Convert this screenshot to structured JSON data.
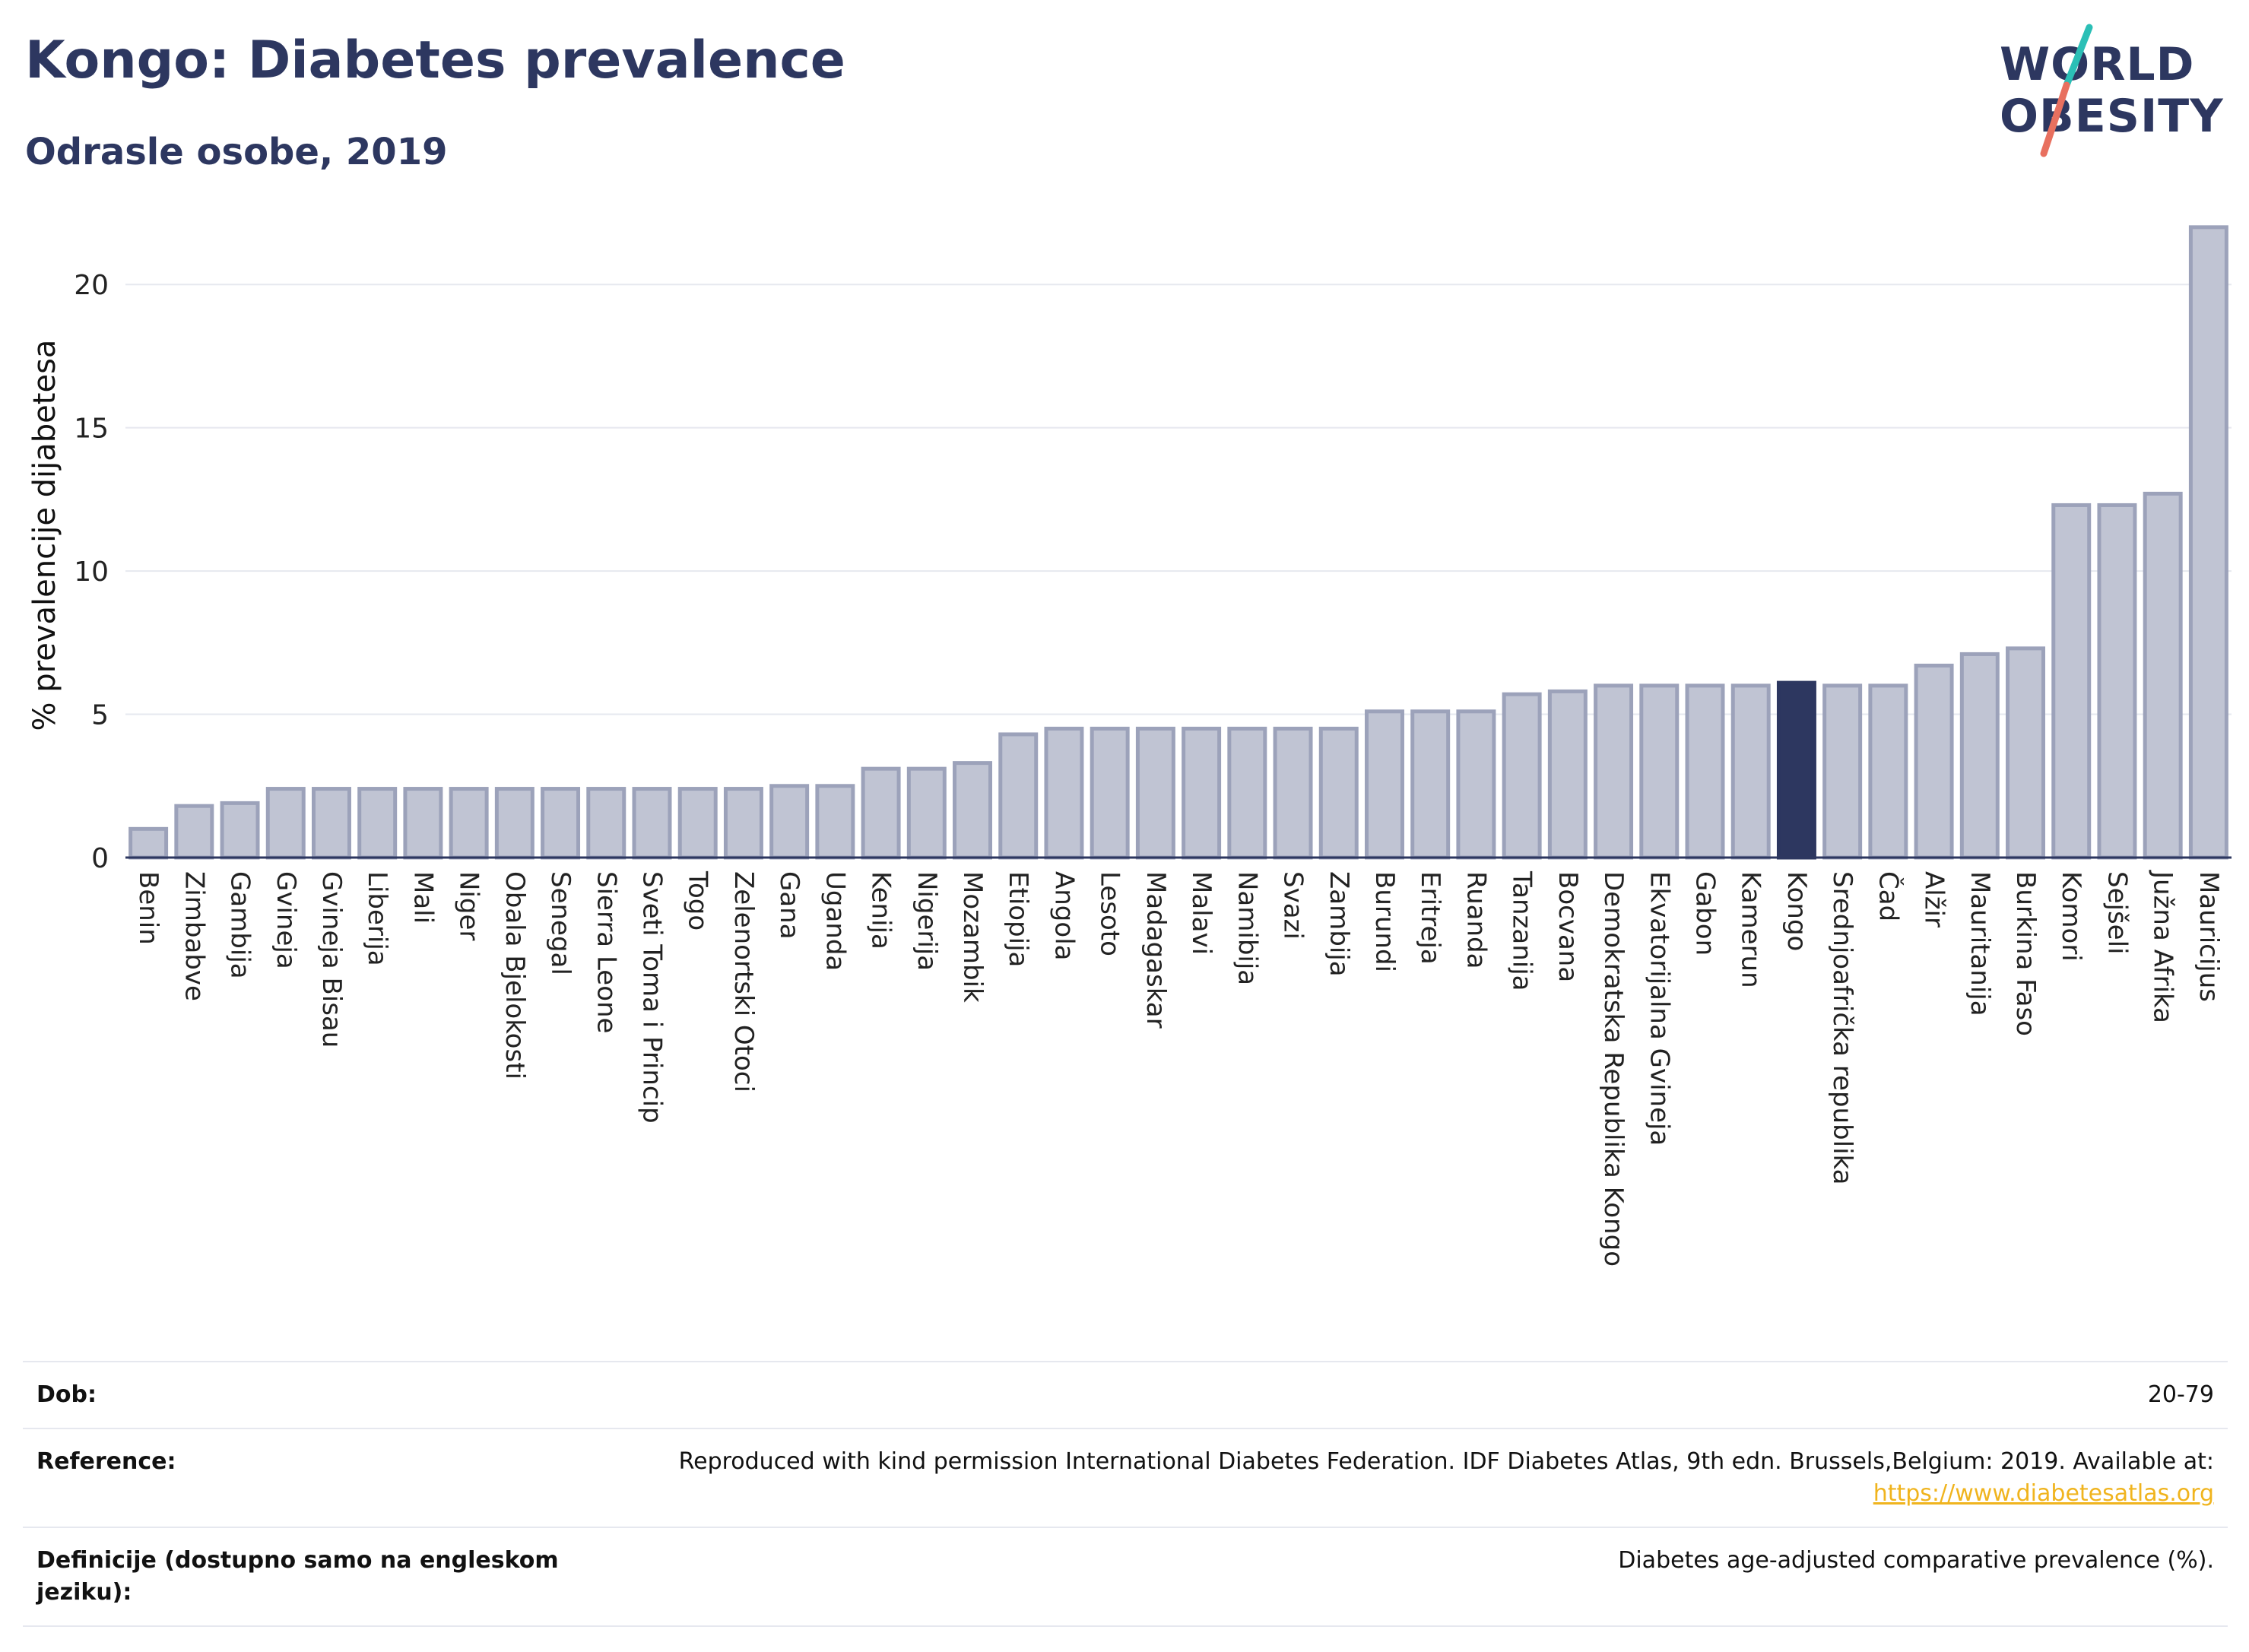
{
  "header": {
    "title": "Kongo: Diabetes prevalence",
    "subtitle": "Odrasle osobe, 2019"
  },
  "logo": {
    "line1": "WORLD",
    "line2": "OBESITY",
    "colors": {
      "text": "#2d3760",
      "slash_top": "#2bbfb6",
      "slash_bottom": "#e8705f"
    }
  },
  "chart_data": {
    "type": "bar",
    "title": "Kongo: Diabetes prevalence",
    "subtitle": "Odrasle osobe, 2019",
    "xlabel": "",
    "ylabel": "% prevalencije dijabetesa",
    "ylim": [
      0,
      22.5
    ],
    "yticks": [
      0,
      5,
      10,
      15,
      20
    ],
    "grid": true,
    "highlight": "Kongo",
    "colors": {
      "bar": "#c0c4d3",
      "bar_edge": "#9ca2ba",
      "highlight": "#2d3760",
      "grid": "#e6e8ef",
      "axis": "#2d3760"
    },
    "categories": [
      "Benin",
      "Zimbabve",
      "Gambija",
      "Gvineja",
      "Gvineja Bisau",
      "Liberija",
      "Mali",
      "Niger",
      "Obala Bjelokosti",
      "Senegal",
      "Sierra Leone",
      "Sveti Toma i Princip",
      "Togo",
      "Zelenortski Otoci",
      "Gana",
      "Uganda",
      "Kenija",
      "Nigerija",
      "Mozambik",
      "Etiopija",
      "Angola",
      "Lesoto",
      "Madagaskar",
      "Malavi",
      "Namibija",
      "Svazi",
      "Zambija",
      "Burundi",
      "Eritreja",
      "Ruanda",
      "Tanzanija",
      "Bocvana",
      "Demokratska Republika Kongo",
      "Ekvatorijalna Gvineja",
      "Gabon",
      "Kamerun",
      "Kongo",
      "Srednjoafrička republika",
      "Čad",
      "Alžir",
      "Mauritanija",
      "Burkina Faso",
      "Komori",
      "Sejšeli",
      "Južna Afrika",
      "Mauricijus"
    ],
    "values": [
      1.0,
      1.8,
      1.9,
      2.4,
      2.4,
      2.4,
      2.4,
      2.4,
      2.4,
      2.4,
      2.4,
      2.4,
      2.4,
      2.4,
      2.5,
      2.5,
      3.1,
      3.1,
      3.3,
      4.3,
      4.5,
      4.5,
      4.5,
      4.5,
      4.5,
      4.5,
      4.5,
      5.1,
      5.1,
      5.1,
      5.7,
      5.8,
      6.0,
      6.0,
      6.0,
      6.0,
      6.1,
      6.0,
      6.0,
      6.7,
      7.1,
      7.3,
      12.3,
      12.3,
      12.7,
      22.0
    ]
  },
  "footer": {
    "rows": [
      {
        "label": "Dob:",
        "value": "20-79"
      },
      {
        "label": "Reference:",
        "value": "Reproduced with kind permission International Diabetes Federation. IDF Diabetes Atlas, 9th edn. Brussels,Belgium: 2019. Available at:",
        "link": "https://www.diabetesatlas.org"
      },
      {
        "label": "Definicije (dostupno samo na engleskom jeziku):",
        "value": "Diabetes age-adjusted comparative prevalence (%)."
      }
    ]
  }
}
